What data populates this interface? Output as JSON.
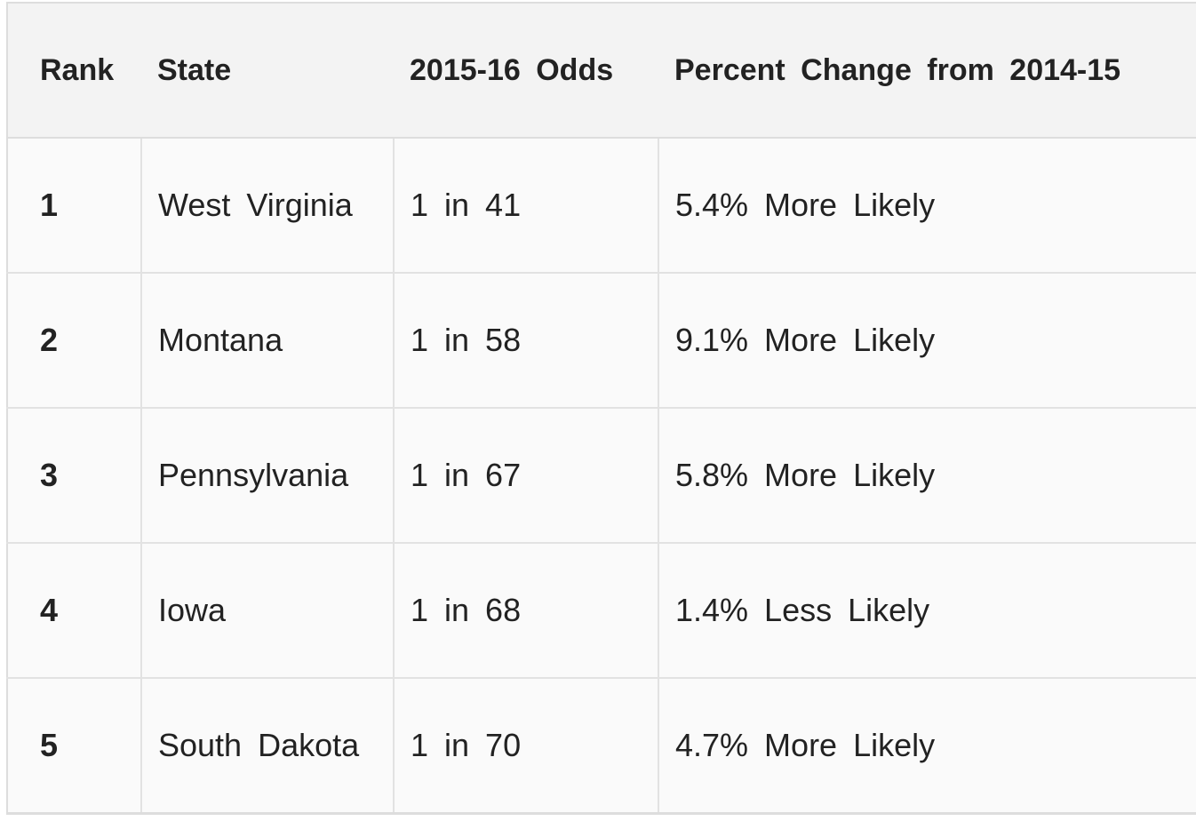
{
  "table": {
    "header": [
      "Rank",
      "State",
      "2015-16 Odds",
      "Percent Change from 2014-15"
    ],
    "rows": [
      [
        "1",
        "West Virginia",
        "1 in 41",
        "5.4% More Likely"
      ],
      [
        "2",
        "Montana",
        "1 in 58",
        "9.1% More Likely"
      ],
      [
        "3",
        "Pennsylvania",
        "1 in 67",
        "5.8% More Likely"
      ],
      [
        "4",
        "Iowa",
        "1 in 68",
        "1.4% Less Likely"
      ],
      [
        "5",
        "South Dakota",
        "1 in 70",
        "4.7% More Likely"
      ]
    ]
  }
}
